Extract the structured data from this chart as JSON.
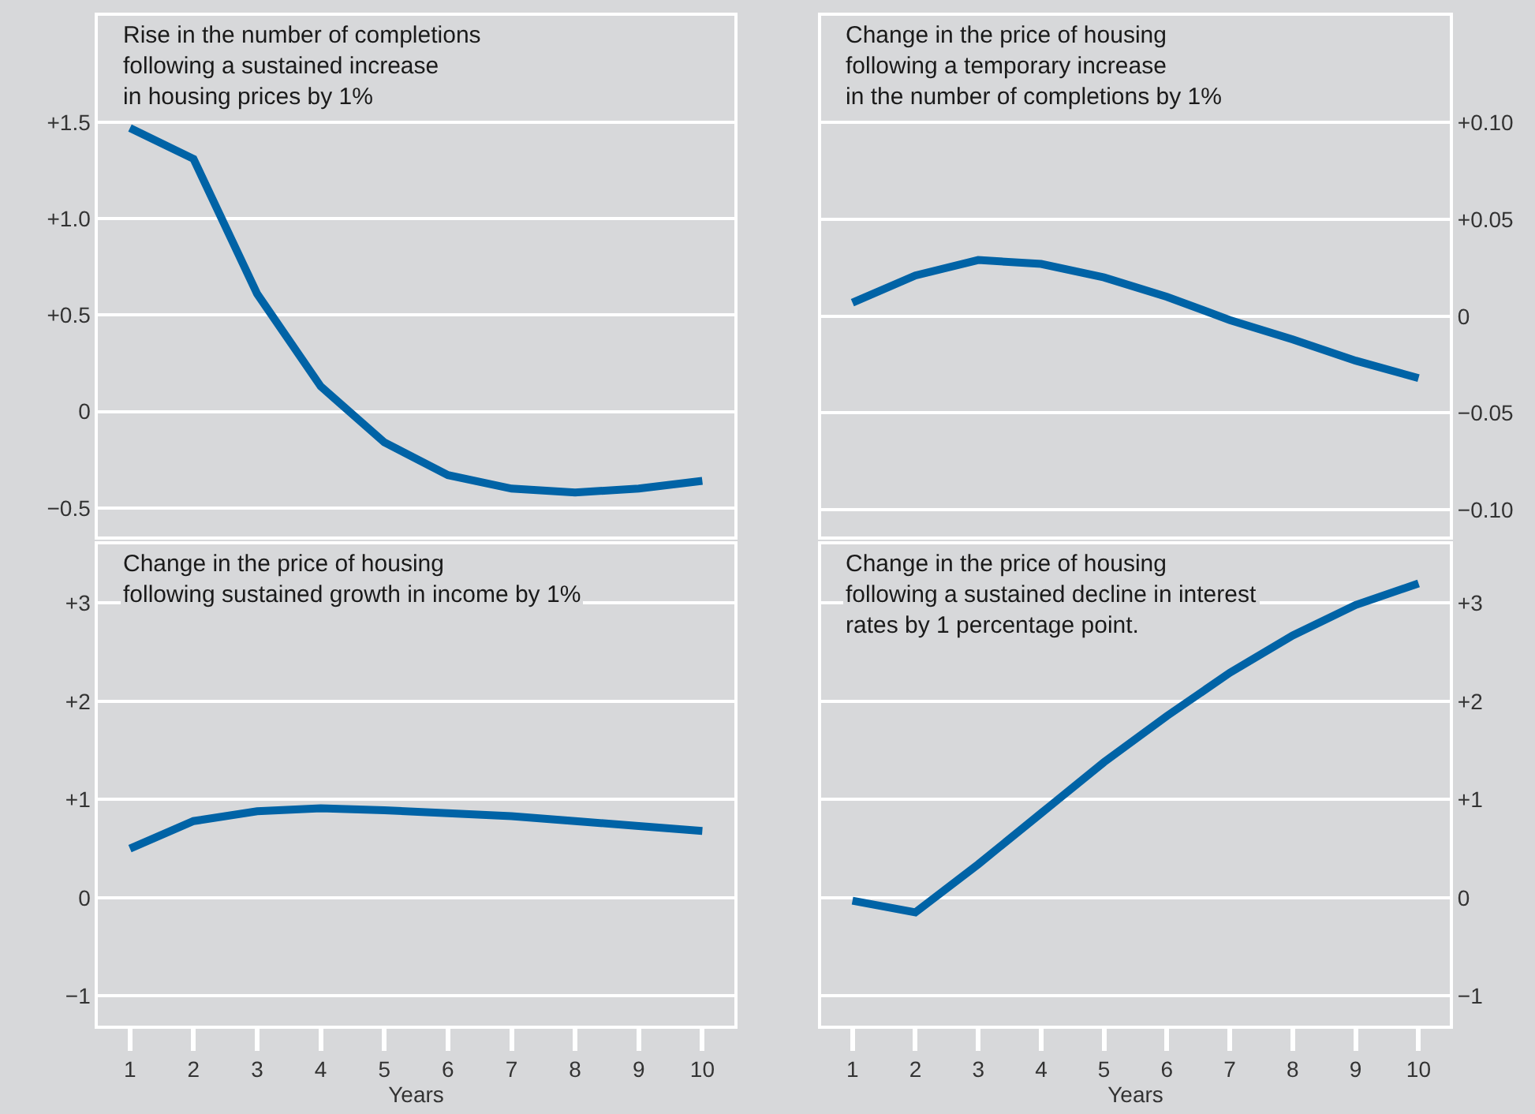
{
  "chart_data": [
    {
      "type": "line",
      "title": "Rise in the number of completions\nfollowing a sustained increase\nin housing prices by 1%",
      "x": [
        1,
        2,
        3,
        4,
        5,
        6,
        7,
        8,
        9,
        10
      ],
      "series": [
        {
          "color": "#0063a6",
          "values": [
            1.47,
            1.31,
            0.61,
            0.13,
            -0.16,
            -0.33,
            -0.4,
            -0.42,
            -0.4,
            -0.36
          ]
        }
      ],
      "xlim": [
        0.5,
        10.5
      ],
      "xticks": [
        1,
        2,
        3,
        4,
        5,
        6,
        7,
        8,
        9,
        10
      ],
      "ylim": [
        -0.65,
        2.05
      ],
      "yticks": [
        {
          "value": -0.5,
          "label": "−0.5"
        },
        0,
        {
          "value": 0.5,
          "label": "+0.5"
        },
        {
          "value": 1.0,
          "label": "+1.0"
        },
        {
          "value": 1.5,
          "label": "+1.5"
        }
      ],
      "grid": "y",
      "tick_labels": "y",
      "marker": "none",
      "line_style": "solid"
    },
    {
      "type": "line",
      "title": "Change in the price of housing\nfollowing a temporary increase\nin the number of completions by 1%",
      "x": [
        1,
        2,
        3,
        4,
        5,
        6,
        7,
        8,
        9,
        10
      ],
      "series": [
        {
          "color": "#0063a6",
          "values": [
            0.007,
            0.021,
            0.029,
            0.027,
            0.02,
            0.01,
            -0.002,
            -0.012,
            -0.023,
            -0.032
          ]
        }
      ],
      "xlim": [
        0.5,
        10.5
      ],
      "xticks": [
        1,
        2,
        3,
        4,
        5,
        6,
        7,
        8,
        9,
        10
      ],
      "ylim": [
        -0.114,
        0.155
      ],
      "yticks": [
        {
          "value": -0.1,
          "label": "−0.10"
        },
        {
          "value": -0.05,
          "label": "−0.05"
        },
        0,
        {
          "value": 0.05,
          "label": "+0.05"
        },
        {
          "value": 0.1,
          "label": "+0.10"
        }
      ],
      "grid": "y",
      "tick_labels": "y",
      "marker": "none",
      "line_style": "solid"
    },
    {
      "type": "line",
      "title": "Change in the price of housing\nfollowing sustained growth in income by 1%",
      "xlabel": "Years",
      "x": [
        1,
        2,
        3,
        4,
        5,
        6,
        7,
        8,
        9,
        10
      ],
      "series": [
        {
          "color": "#0063a6",
          "values": [
            0.5,
            0.78,
            0.88,
            0.91,
            0.89,
            0.86,
            0.83,
            0.78,
            0.73,
            0.68
          ]
        }
      ],
      "xlim": [
        0.5,
        10.5
      ],
      "xticks": [
        1,
        2,
        3,
        4,
        5,
        6,
        7,
        8,
        9,
        10
      ],
      "ylim": [
        -1.3,
        3.6
      ],
      "yticks": [
        {
          "value": -1,
          "label": "−1"
        },
        0,
        {
          "value": 1,
          "label": "+1"
        },
        {
          "value": 2,
          "label": "+2"
        },
        {
          "value": 3,
          "label": "+3"
        }
      ],
      "grid": "y",
      "marker": "none",
      "line_style": "solid"
    },
    {
      "type": "line",
      "title": "Change in the price of housing\nfollowing a sustained decline in interest\nrates by 1 percentage point.",
      "xlabel": "Years",
      "x": [
        1,
        2,
        3,
        4,
        5,
        6,
        7,
        8,
        9,
        10
      ],
      "series": [
        {
          "color": "#0063a6",
          "values": [
            -0.03,
            -0.15,
            0.34,
            0.86,
            1.38,
            1.85,
            2.29,
            2.67,
            2.98,
            3.2
          ]
        }
      ],
      "xlim": [
        0.5,
        10.5
      ],
      "xticks": [
        1,
        2,
        3,
        4,
        5,
        6,
        7,
        8,
        9,
        10
      ],
      "ylim": [
        -1.3,
        3.6
      ],
      "yticks": [
        {
          "value": -1,
          "label": "−1"
        },
        0,
        {
          "value": 1,
          "label": "+1"
        },
        {
          "value": 2,
          "label": "+2"
        },
        {
          "value": 3,
          "label": "+3"
        }
      ],
      "grid": "y",
      "marker": "none",
      "line_style": "solid"
    }
  ]
}
